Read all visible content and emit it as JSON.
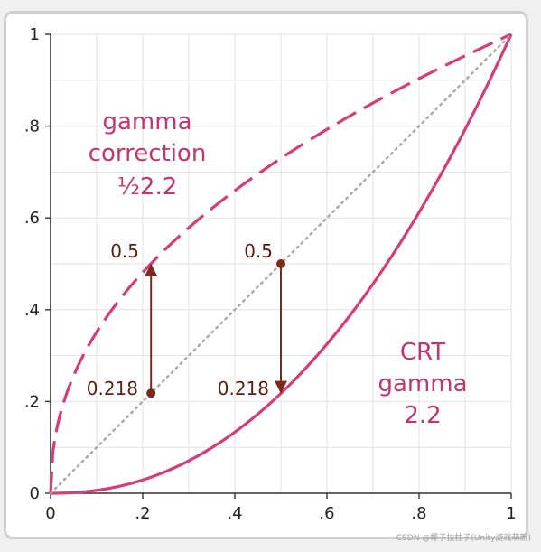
{
  "chart_data": {
    "type": "line",
    "title": "",
    "xlabel": "",
    "ylabel": "",
    "xlim": [
      0,
      1
    ],
    "ylim": [
      0,
      1
    ],
    "x_ticks": [
      "0",
      ".2",
      ".4",
      ".6",
      ".8",
      "1"
    ],
    "y_ticks": [
      "0",
      ".2",
      ".4",
      ".6",
      ".8",
      "1"
    ],
    "grid": true,
    "series": [
      {
        "style": "dashed",
        "color": "#d63c78",
        "gamma": 0.4545
      },
      {
        "style": "solid",
        "color": "#d63c78",
        "gamma": 2.2
      },
      {
        "style": "dotted",
        "color": "#a8a8a8",
        "gamma": 1
      }
    ],
    "annotations": {
      "correction_line1": "gamma",
      "correction_line2": "correction",
      "correction_line3": "½2.2",
      "crt_line1": "CRT",
      "crt_line2": "gamma",
      "crt_line3": "2.2",
      "left_top_value": "0.5",
      "left_bottom_value": "0.218",
      "right_top_value": "0.5",
      "right_bottom_value": "0.218"
    },
    "arrows": [
      {
        "x": 0.218,
        "y_from": 0.218,
        "y_to": 0.5,
        "direction": "up"
      },
      {
        "x": 0.5,
        "y_from": 0.5,
        "y_to": 0.218,
        "direction": "down"
      }
    ],
    "colors": {
      "curve": "#d63c78",
      "arrow": "#7a2a1a",
      "diagonal": "#a8a8a8",
      "grid": "#e2e2e2"
    }
  },
  "watermark": "CSDN @椰子拉柱子(Unity游戏萌新)"
}
